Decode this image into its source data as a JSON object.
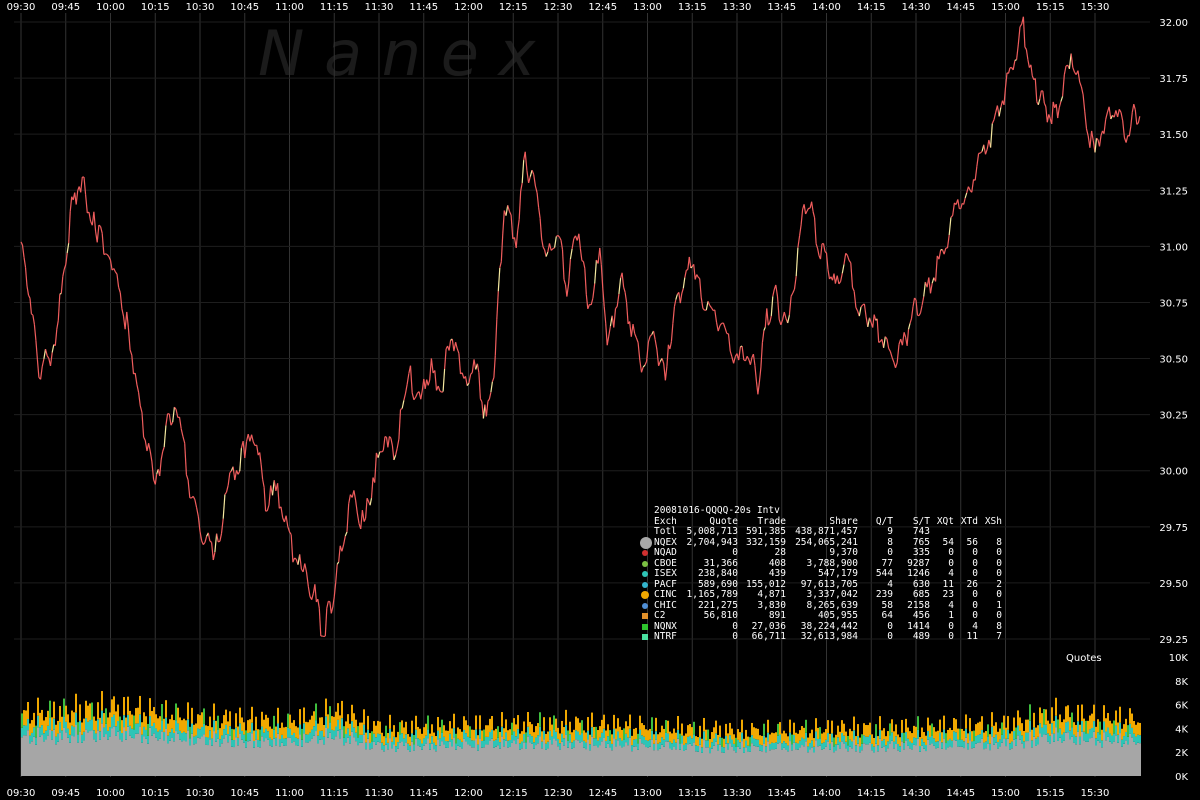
{
  "watermark": "N   a   n   e   x",
  "chart_data": {
    "type": "line",
    "price_axis": {
      "ylim": [
        29.2,
        32.05
      ],
      "ticks": [
        "29.25",
        "29.50",
        "29.75",
        "30.00",
        "30.25",
        "30.50",
        "30.75",
        "31.00",
        "31.25",
        "31.50",
        "31.75",
        "32.00"
      ]
    },
    "time_axis": {
      "ticks": [
        "09:30",
        "09:45",
        "10:00",
        "10:15",
        "10:30",
        "10:45",
        "11:00",
        "11:15",
        "11:30",
        "11:45",
        "12:00",
        "12:15",
        "12:30",
        "12:45",
        "13:00",
        "13:15",
        "13:30",
        "13:45",
        "14:00",
        "14:15",
        "14:30",
        "14:45",
        "15:00",
        "15:15",
        "15:30"
      ]
    },
    "price_series": {
      "x": [
        "09:30",
        "09:33",
        "09:36",
        "09:41",
        "09:44",
        "09:47",
        "09:50",
        "09:55",
        "10:00",
        "10:06",
        "10:10",
        "10:15",
        "10:18",
        "10:22",
        "10:26",
        "10:30",
        "10:35",
        "10:40",
        "10:45",
        "10:49",
        "10:52",
        "10:56",
        "11:00",
        "11:04",
        "11:08",
        "11:11",
        "11:14",
        "11:17",
        "11:21",
        "11:25",
        "11:28",
        "11:32",
        "11:35",
        "11:40",
        "11:44",
        "11:47",
        "11:51",
        "11:54",
        "11:59",
        "12:03",
        "12:06",
        "12:09",
        "12:12",
        "12:16",
        "12:19",
        "12:23",
        "12:26",
        "12:30",
        "12:33",
        "12:37",
        "12:40",
        "12:44",
        "12:47",
        "12:51",
        "12:54",
        "12:58",
        "13:02",
        "13:06",
        "13:09",
        "13:12",
        "13:15",
        "13:18",
        "13:22",
        "13:26",
        "13:30",
        "13:34",
        "13:37",
        "13:40",
        "13:43",
        "13:47",
        "13:51",
        "13:54",
        "13:57",
        "14:00",
        "14:03",
        "14:07",
        "14:11",
        "14:15",
        "14:18",
        "14:22",
        "14:26",
        "14:29",
        "14:32",
        "14:36",
        "14:40",
        "14:44",
        "14:47",
        "14:51",
        "14:55",
        "14:59",
        "15:02",
        "15:06",
        "15:09",
        "15:12",
        "15:15",
        "15:18",
        "15:22",
        "15:26",
        "15:30",
        "15:33",
        "15:37",
        "15:41",
        "15:43",
        "15:45"
      ],
      "y": [
        31.02,
        30.78,
        30.44,
        30.55,
        30.82,
        31.18,
        31.3,
        31.08,
        30.97,
        30.62,
        30.28,
        29.92,
        30.15,
        30.32,
        29.97,
        29.72,
        29.63,
        29.95,
        30.1,
        30.17,
        29.85,
        29.92,
        29.68,
        29.55,
        29.47,
        29.27,
        29.41,
        29.62,
        29.88,
        29.75,
        29.97,
        30.17,
        30.05,
        30.43,
        30.3,
        30.46,
        30.35,
        30.63,
        30.42,
        30.45,
        30.2,
        30.52,
        31.18,
        31.05,
        31.38,
        31.22,
        30.94,
        31.07,
        30.82,
        31.1,
        30.72,
        30.95,
        30.55,
        30.88,
        30.68,
        30.48,
        30.62,
        30.4,
        30.72,
        30.82,
        30.95,
        30.79,
        30.7,
        30.62,
        30.47,
        30.55,
        30.38,
        30.68,
        30.78,
        30.6,
        31.05,
        31.22,
        31.03,
        30.92,
        30.81,
        30.95,
        30.72,
        30.69,
        30.62,
        30.48,
        30.56,
        30.72,
        30.75,
        30.87,
        31.02,
        31.19,
        31.21,
        31.38,
        31.5,
        31.65,
        31.8,
        31.97,
        31.72,
        31.65,
        31.58,
        31.62,
        31.88,
        31.62,
        31.4,
        31.55,
        31.62,
        31.5,
        31.62,
        31.58
      ]
    },
    "volume_axis": {
      "label": "Quotes",
      "ylim": [
        0,
        10000
      ],
      "ticks": [
        "0K",
        "2K",
        "4K",
        "6K",
        "8K",
        "10K"
      ]
    },
    "volume_profile": {
      "x": [
        "09:30",
        "10:00",
        "10:30",
        "11:00",
        "11:15",
        "11:30",
        "12:00",
        "12:30",
        "13:00",
        "13:30",
        "14:00",
        "14:30",
        "15:00",
        "15:15",
        "15:30",
        "15:45"
      ],
      "total": [
        5500,
        6100,
        5200,
        4800,
        5800,
        4300,
        4500,
        4700,
        4400,
        4000,
        4200,
        4300,
        4600,
        5600,
        5200,
        5000
      ],
      "gray_share": 0.62,
      "teal_share": 0.15
    },
    "colors": {
      "price_line": "#f05d5d",
      "price_up": "#f5e9a0",
      "volume_gray": "#a6a6a6",
      "volume_teal": "#2ec4b6",
      "volume_orange": "#f0a800",
      "volume_green": "#3fbf3f",
      "grid": "#333333"
    },
    "stats_table": {
      "title": "20081016-QQQQ-20s Intv",
      "headers": [
        "Exch",
        "Quote",
        "Trade",
        "Share",
        "Q/T",
        "S/T",
        "XQt",
        "XTd",
        "XSh"
      ],
      "rows": [
        {
          "exch": "Totl",
          "quote": "5,008,713",
          "trade": "591,385",
          "share": "438,871,457",
          "qt": "9",
          "st": "743",
          "xqt": "",
          "xtd": "",
          "xsh": "",
          "color": "",
          "marker": "none"
        },
        {
          "exch": "NQEX",
          "quote": "2,704,943",
          "trade": "332,159",
          "share": "254,065,241",
          "qt": "8",
          "st": "765",
          "xqt": "54",
          "xtd": "56",
          "xsh": "8",
          "color": "#a8a8a8",
          "marker": "big"
        },
        {
          "exch": "NQAD",
          "quote": "0",
          "trade": "28",
          "share": "9,370",
          "qt": "0",
          "st": "335",
          "xqt": "0",
          "xtd": "0",
          "xsh": "0",
          "color": "#d03030",
          "marker": "dot"
        },
        {
          "exch": "CBOE",
          "quote": "31,366",
          "trade": "408",
          "share": "3,788,900",
          "qt": "77",
          "st": "9287",
          "xqt": "0",
          "xtd": "0",
          "xsh": "0",
          "color": "#7bc043",
          "marker": "dot"
        },
        {
          "exch": "ISEX",
          "quote": "238,840",
          "trade": "439",
          "share": "547,179",
          "qt": "544",
          "st": "1246",
          "xqt": "4",
          "xtd": "0",
          "xsh": "0",
          "color": "#2ec4b6",
          "marker": "dot"
        },
        {
          "exch": "PACF",
          "quote": "589,690",
          "trade": "155,012",
          "share": "97,613,705",
          "qt": "4",
          "st": "630",
          "xqt": "11",
          "xtd": "26",
          "xsh": "2",
          "color": "#33b5cc",
          "marker": "dot"
        },
        {
          "exch": "CINC",
          "quote": "1,165,789",
          "trade": "4,871",
          "share": "3,337,042",
          "qt": "239",
          "st": "685",
          "xqt": "23",
          "xtd": "0",
          "xsh": "0",
          "color": "#f0a800",
          "marker": "dotbig"
        },
        {
          "exch": "CHIC",
          "quote": "221,275",
          "trade": "3,830",
          "share": "8,265,639",
          "qt": "58",
          "st": "2158",
          "xqt": "4",
          "xtd": "0",
          "xsh": "1",
          "color": "#4f8fd6",
          "marker": "dot"
        },
        {
          "exch": "C2",
          "quote": "56,810",
          "trade": "891",
          "share": "405,955",
          "qt": "64",
          "st": "456",
          "xqt": "1",
          "xtd": "0",
          "xsh": "0",
          "color": "#e0902a",
          "marker": "sq"
        },
        {
          "exch": "NQNX",
          "quote": "0",
          "trade": "27,036",
          "share": "38,224,442",
          "qt": "0",
          "st": "1414",
          "xqt": "0",
          "xtd": "4",
          "xsh": "8",
          "color": "#2ec42e",
          "marker": "sq"
        },
        {
          "exch": "NTRF",
          "quote": "0",
          "trade": "66,711",
          "share": "32,613,984",
          "qt": "0",
          "st": "489",
          "xqt": "0",
          "xtd": "11",
          "xsh": "7",
          "color": "#4ae0a0",
          "marker": "sq"
        }
      ]
    }
  }
}
